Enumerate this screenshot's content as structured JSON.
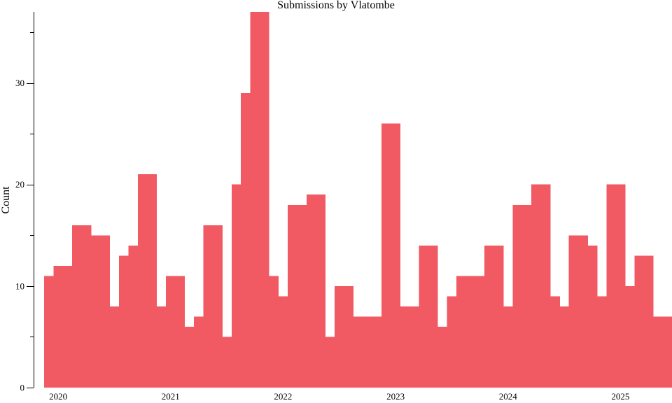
{
  "chart_data": {
    "type": "bar",
    "title": "Submissions by Vlatombe",
    "xlabel": "",
    "ylabel": "Count",
    "color": "#f25a63",
    "grid": false,
    "ylim": [
      0,
      37
    ],
    "y_ticks": [
      0,
      10,
      20,
      30
    ],
    "x_ticks": [
      "2020",
      "2021",
      "2022",
      "2023",
      "2024",
      "2025"
    ],
    "xlim": [
      "2019-12",
      "2025-07"
    ],
    "categories": [
      "2019-12",
      "2020-01",
      "2020-02",
      "2020-03",
      "2020-04",
      "2020-05",
      "2020-06",
      "2020-07",
      "2020-08",
      "2020-09",
      "2020-10",
      "2020-11",
      "2020-12",
      "2021-01",
      "2021-02",
      "2021-03",
      "2021-04",
      "2021-05",
      "2021-06",
      "2021-07",
      "2021-08",
      "2021-09",
      "2021-10",
      "2021-11",
      "2021-12",
      "2022-01",
      "2022-02",
      "2022-03",
      "2022-04",
      "2022-05",
      "2022-06",
      "2022-07",
      "2022-08",
      "2022-09",
      "2022-10",
      "2022-11",
      "2022-12",
      "2023-01",
      "2023-02",
      "2023-03",
      "2023-04",
      "2023-05",
      "2023-06",
      "2023-07",
      "2023-08",
      "2023-09",
      "2023-10",
      "2023-11",
      "2023-12",
      "2024-01",
      "2024-02",
      "2024-03",
      "2024-04",
      "2024-05",
      "2024-06",
      "2024-07",
      "2024-08",
      "2024-09",
      "2024-10",
      "2024-11",
      "2024-12",
      "2025-01",
      "2025-02",
      "2025-03",
      "2025-04",
      "2025-05",
      "2025-06"
    ],
    "values": [
      11,
      12,
      12,
      16,
      16,
      15,
      15,
      8,
      13,
      14,
      21,
      21,
      8,
      11,
      11,
      6,
      7,
      16,
      16,
      5,
      20,
      29,
      37,
      37,
      11,
      9,
      18,
      18,
      19,
      19,
      5,
      10,
      10,
      7,
      7,
      7,
      26,
      26,
      8,
      8,
      14,
      14,
      6,
      9,
      11,
      11,
      11,
      14,
      14,
      8,
      18,
      18,
      20,
      20,
      9,
      8,
      15,
      15,
      14,
      9,
      20,
      20,
      10,
      13,
      13,
      7,
      7
    ]
  }
}
